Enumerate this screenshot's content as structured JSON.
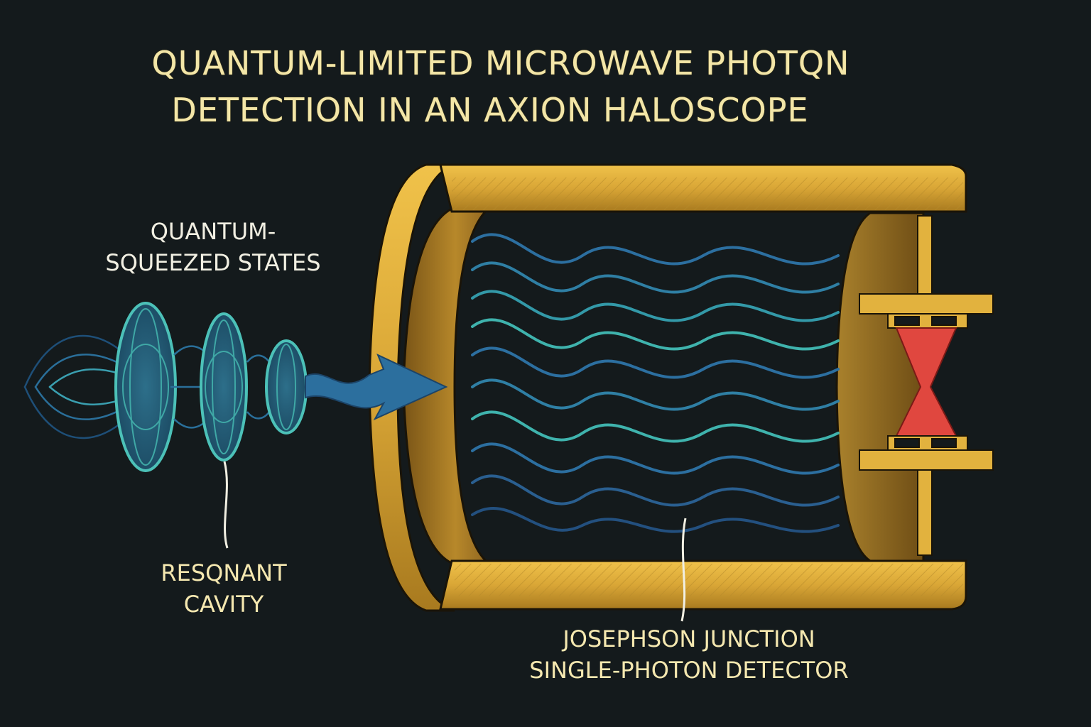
{
  "title": {
    "line1": "QUANTUM-LIMITED MICROWAVE PHOTQN",
    "line2": "DETECTION IN AN AXION HALOSCOPE"
  },
  "labels": {
    "squeezed_states": {
      "line1": "QUANTUM-",
      "line2": "SQUEEZED STATES"
    },
    "resonant_cavity": {
      "line1": "RESQNANT",
      "line2": "CAVITY"
    },
    "detector": {
      "line1": "JOSEPHSON JUNCTION",
      "line2": "SINGLE-PHOTON DETECTOR"
    }
  },
  "colors": {
    "background": "#141a1c",
    "gold": "#d9ab38",
    "gold_dark": "#8a6418",
    "wave_blue": "#2c6fa0",
    "wave_teal": "#3fb3ad",
    "junction_red": "#e0473f",
    "text": "#f3e6a8"
  }
}
